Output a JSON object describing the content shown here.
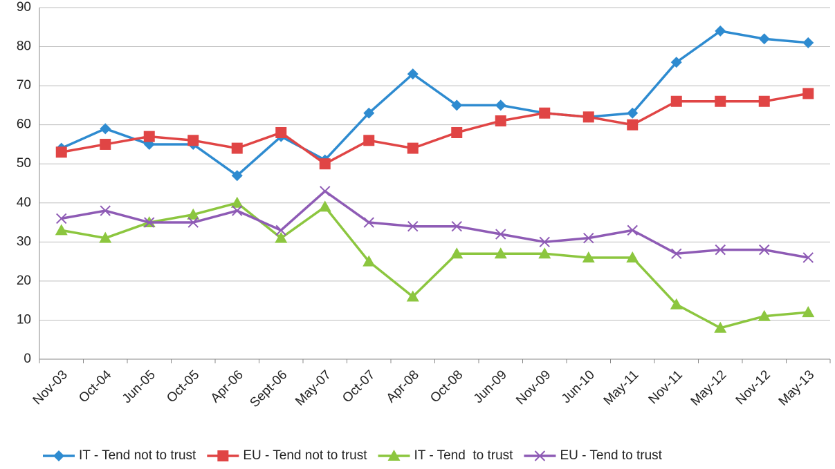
{
  "chart_data": {
    "type": "line",
    "categories": [
      "Nov-03",
      "Oct-04",
      "Jun-05",
      "Oct-05",
      "Apr-06",
      "Sept-06",
      "May-07",
      "Oct-07",
      "Apr-08",
      "Oct-08",
      "Jun-09",
      "Nov-09",
      "Jun-10",
      "May-11",
      "Nov-11",
      "May-12",
      "Nov-12",
      "May-13"
    ],
    "series": [
      {
        "name": "IT - Tend not to trust",
        "color": "#2e8bd0",
        "marker": "diamond",
        "values": [
          54,
          59,
          55,
          55,
          47,
          57,
          51,
          63,
          73,
          65,
          65,
          63,
          62,
          63,
          76,
          84,
          82,
          81
        ]
      },
      {
        "name": "EU - Tend not to trust",
        "color": "#e04545",
        "marker": "square",
        "values": [
          53,
          55,
          57,
          56,
          54,
          58,
          50,
          56,
          54,
          58,
          61,
          63,
          62,
          60,
          66,
          66,
          66,
          68
        ]
      },
      {
        "name": "IT - Tend  to trust",
        "color": "#8cc63f",
        "marker": "triangle",
        "values": [
          33,
          31,
          35,
          37,
          40,
          31,
          39,
          25,
          16,
          27,
          27,
          27,
          26,
          26,
          14,
          8,
          11,
          12
        ]
      },
      {
        "name": "EU - Tend to trust",
        "color": "#8e5bb5",
        "marker": "x",
        "values": [
          36,
          38,
          35,
          35,
          38,
          33,
          43,
          35,
          34,
          34,
          32,
          30,
          31,
          33,
          27,
          28,
          28,
          26
        ]
      }
    ],
    "ylim": [
      0,
      90
    ],
    "yticks": [
      0,
      10,
      20,
      30,
      40,
      50,
      60,
      70,
      80,
      90
    ],
    "grid": true,
    "legend": "bottom"
  }
}
